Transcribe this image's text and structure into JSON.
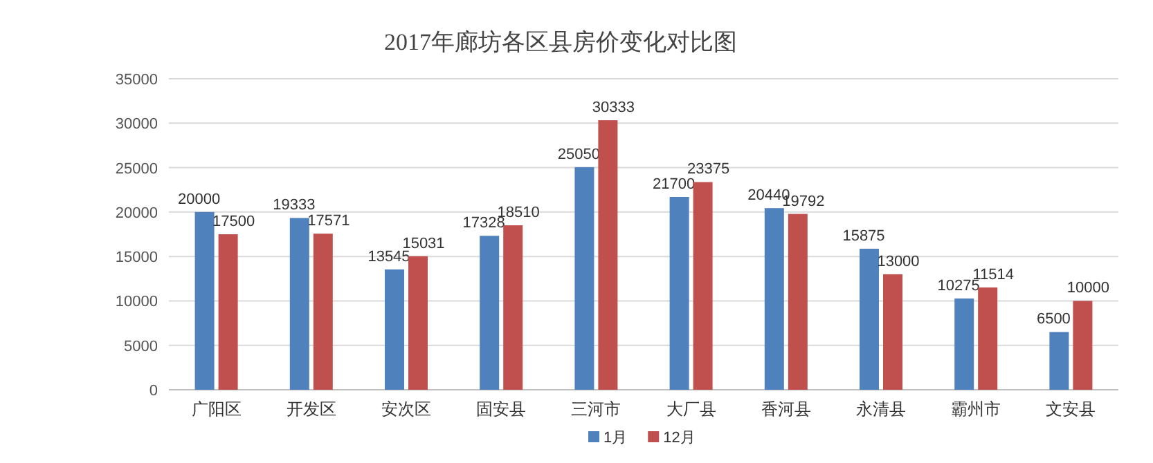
{
  "chart_data": {
    "type": "bar",
    "title": "2017年廊坊各区县房价变化对比图",
    "categories": [
      "广阳区",
      "开发区",
      "安次区",
      "固安县",
      "三河市",
      "大厂县",
      "香河县",
      "永清县",
      "霸州市",
      "文安县"
    ],
    "series": [
      {
        "name": "1月",
        "color": "#4f81bd",
        "values": [
          20000,
          19333,
          13545,
          17328,
          25050,
          21700,
          20440,
          15875,
          10275,
          6500
        ]
      },
      {
        "name": "12月",
        "color": "#c0504d",
        "values": [
          17500,
          17571,
          15031,
          18510,
          30333,
          23375,
          19792,
          13000,
          11514,
          10000
        ]
      }
    ],
    "ylim": [
      0,
      35000
    ],
    "yticks": [
      0,
      5000,
      10000,
      15000,
      20000,
      25000,
      30000,
      35000
    ],
    "grid": "y",
    "legend": "bottom",
    "data_labels": true
  }
}
